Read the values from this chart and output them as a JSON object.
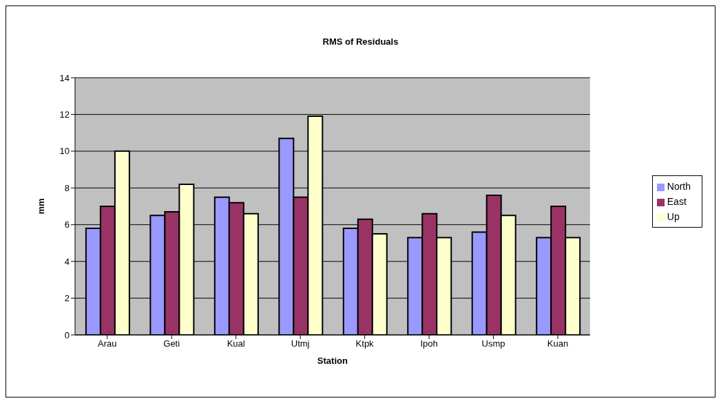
{
  "chart_data": {
    "type": "bar",
    "title": "RMS of Residuals",
    "xlabel": "Station",
    "ylabel": "mm",
    "categories": [
      "Arau",
      "Geti",
      "Kual",
      "Utmj",
      "Ktpk",
      "Ipoh",
      "Usmp",
      "Kuan"
    ],
    "series": [
      {
        "name": "North",
        "color": "#9999ff",
        "values": [
          5.8,
          6.5,
          7.5,
          10.7,
          5.8,
          5.3,
          5.6,
          5.3
        ]
      },
      {
        "name": "East",
        "color": "#993366",
        "values": [
          7.0,
          6.7,
          7.2,
          7.5,
          6.3,
          6.6,
          7.6,
          7.0
        ]
      },
      {
        "name": "Up",
        "color": "#ffffcc",
        "values": [
          10.0,
          8.2,
          6.6,
          11.9,
          5.5,
          5.3,
          6.5,
          5.3
        ]
      }
    ],
    "ylim": [
      0,
      14
    ],
    "yticks": [
      0,
      2,
      4,
      6,
      8,
      10,
      12,
      14
    ],
    "grid": "y",
    "legend": "right"
  }
}
